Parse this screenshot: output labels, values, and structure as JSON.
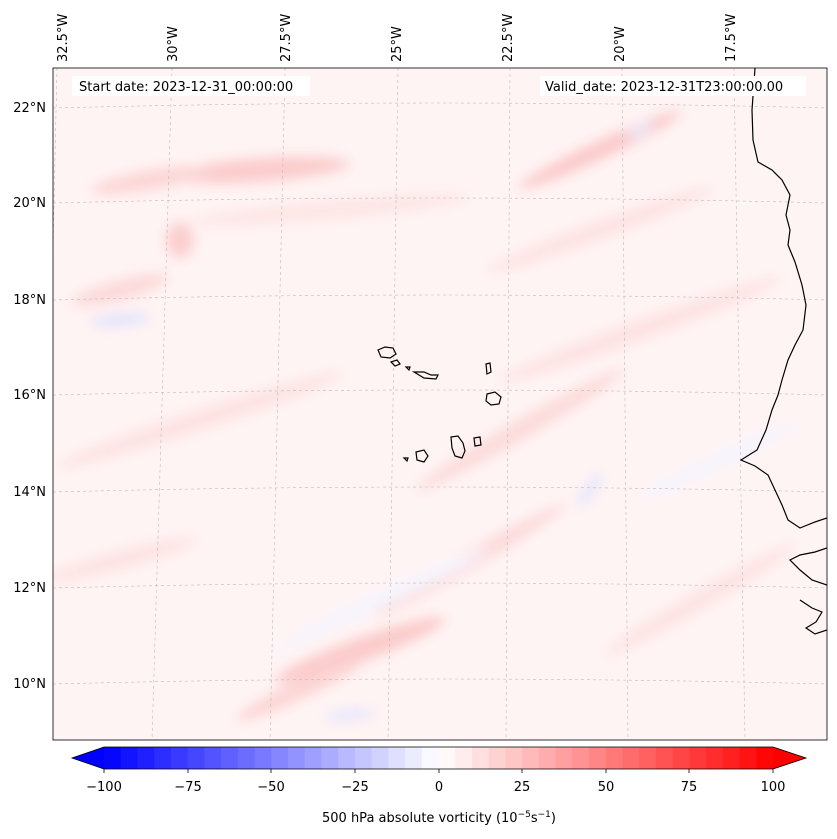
{
  "map": {
    "start_date_label": "Start date: 2023-12-31_00:00:00",
    "valid_date_label": "Valid_date: 2023-12-31T23:00:00.00",
    "lon_ticks": [
      "32.5°W",
      "30°W",
      "27.5°W",
      "25°W",
      "22.5°W",
      "20°W",
      "17.5°W"
    ],
    "lat_ticks": [
      "22°N",
      "20°N",
      "18°N",
      "16°N",
      "14°N",
      "12°N",
      "10°N"
    ],
    "gridlines": true,
    "field": "500 hPa absolute vorticity",
    "coastline_color": "#000000"
  },
  "colorbar": {
    "label_main": "500 hPa absolute vorticity (10",
    "label_exp1": "−5",
    "label_mid": "s",
    "label_exp2": "−1",
    "label_end": ")",
    "ticks": [
      "−100",
      "−75",
      "−50",
      "−25",
      "0",
      "25",
      "50",
      "75",
      "100"
    ],
    "min": -100,
    "max": 100,
    "extend": "both",
    "colormap": "bwr",
    "min_color": "#0000ff",
    "mid_color": "#ffffff",
    "max_color": "#ff0000"
  }
}
